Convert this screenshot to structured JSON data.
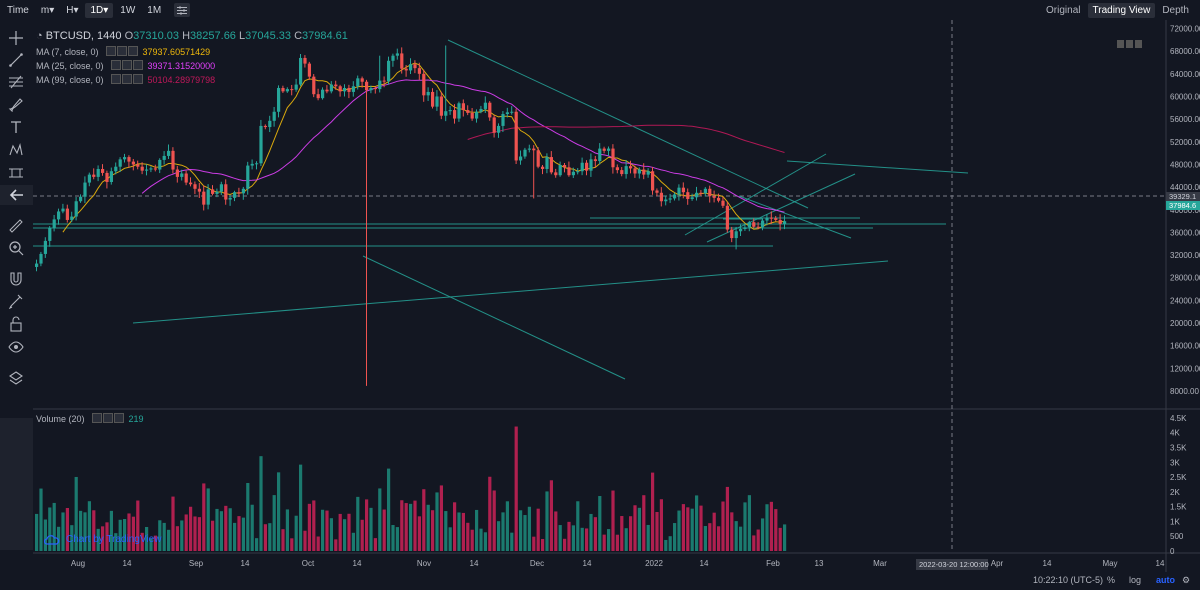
{
  "topbar": {
    "time_label": "Time",
    "minutes_label": "m▾",
    "hours_label": "H▾",
    "day_label": "1D▾",
    "week_label": "1W",
    "month_label": "1M"
  },
  "view_tabs": {
    "original": "Original",
    "trading_view": "Trading View",
    "depth": "Depth"
  },
  "legend": {
    "symbol": "BTCUSD, 1440",
    "o_label": "O",
    "o_value": "37310.03",
    "h_label": "H",
    "h_value": "38257.66",
    "l_label": "L",
    "l_value": "37045.33",
    "c_label": "C",
    "c_value": "37984.61",
    "ma": [
      {
        "label": "MA (7, close, 0)",
        "value": "37937.60571429",
        "color": "#f0b90b"
      },
      {
        "label": "MA (25, close, 0)",
        "value": "39371.31520000",
        "color": "#e040fb"
      },
      {
        "label": "MA (99, close, 0)",
        "value": "50104.28979798",
        "color": "#c2185b"
      }
    ]
  },
  "volume_legend": {
    "label": "Volume (20)",
    "value": "219"
  },
  "attribution": "Chart by TradingView",
  "status": {
    "time": "10:22:10 (UTC-5)",
    "percent": "%",
    "log": "log",
    "auto": "auto"
  },
  "crosshair_date": "2022-03-20 12:00:00",
  "price_tags": {
    "upper": "39329.1",
    "current": "37984.6"
  },
  "chart_data": {
    "type": "candlestick",
    "symbol": "BTCUSD",
    "interval": "1440",
    "x_ticks": [
      "Aug",
      "14",
      "Sep",
      "14",
      "Oct",
      "14",
      "Nov",
      "14",
      "Dec",
      "14",
      "2022",
      "14",
      "Feb",
      "13",
      "Mar",
      "Apr",
      "14",
      "May",
      "14"
    ],
    "y_ticks": [
      "72000.00",
      "68000.00",
      "64000.00",
      "60000.00",
      "56000.00",
      "52000.00",
      "48000.00",
      "44000.00",
      "40000.00",
      "36000.00",
      "32000.00",
      "28000.00",
      "24000.00",
      "20000.00",
      "16000.00",
      "12000.00",
      "8000.00"
    ],
    "y_tick_values": [
      72000,
      68000,
      64000,
      60000,
      56000,
      52000,
      48000,
      44000,
      40000,
      36000,
      32000,
      28000,
      24000,
      20000,
      16000,
      12000,
      8000
    ],
    "ylim": [
      5000,
      73500
    ],
    "volume_ticks": [
      "4.5K",
      "4K",
      "3.5K",
      "3K",
      "2.5K",
      "2K",
      "1.5K",
      "1K",
      "500",
      "0"
    ],
    "volume_tick_values": [
      4500,
      4000,
      3500,
      3000,
      2500,
      2000,
      1500,
      1000,
      500,
      0
    ],
    "volume_ylim": [
      0,
      4600
    ],
    "up_color": "#26a69a",
    "down_color": "#ef5350",
    "closes": [
      30500,
      32200,
      34500,
      36800,
      38300,
      39700,
      40200,
      38200,
      38800,
      41500,
      42300,
      44800,
      46200,
      45800,
      47200,
      46500,
      44900,
      46800,
      47600,
      48900,
      49300,
      48500,
      48000,
      47600,
      46900,
      47100,
      47300,
      47100,
      48800,
      49500,
      50400,
      47100,
      45800,
      46400,
      44800,
      44500,
      43700,
      43200,
      40900,
      43600,
      42800,
      43200,
      44500,
      41800,
      42100,
      43100,
      42900,
      43700,
      47800,
      48100,
      48200,
      54800,
      54600,
      55700,
      57300,
      61500,
      60900,
      61300,
      61200,
      62100,
      66800,
      65800,
      63500,
      60400,
      59700,
      61200,
      60900,
      62100,
      61800,
      60900,
      61500,
      60800,
      61800,
      63200,
      62600,
      61100,
      61500,
      61300,
      62800,
      62700,
      66300,
      67200,
      67600,
      64900,
      64600,
      65700,
      65000,
      64000,
      60200,
      60800,
      58200,
      60000,
      56600,
      57400,
      57600,
      56100,
      58800,
      57600,
      57100,
      56100,
      57300,
      57800,
      58900,
      56300,
      53600,
      54800,
      56900,
      57200,
      57300,
      48700,
      49400,
      50600,
      50800,
      50500,
      47600,
      47200,
      49300,
      46600,
      46100,
      47900,
      47500,
      46100,
      46700,
      46800,
      48300,
      46900,
      48900,
      48600,
      50800,
      50400,
      50800,
      47500,
      47000,
      46300,
      47700,
      47300,
      46400,
      47100,
      46200,
      46800,
      43400,
      43000,
      41500,
      41800,
      42000,
      42700,
      43900,
      43100,
      41900,
      42200,
      43000,
      42900,
      43700,
      42400,
      42100,
      41600,
      40700,
      36500,
      35000,
      36200,
      36600,
      36900,
      37800,
      37000,
      36900,
      38100,
      38600,
      38500,
      38200,
      37500,
      37984
    ]
  }
}
